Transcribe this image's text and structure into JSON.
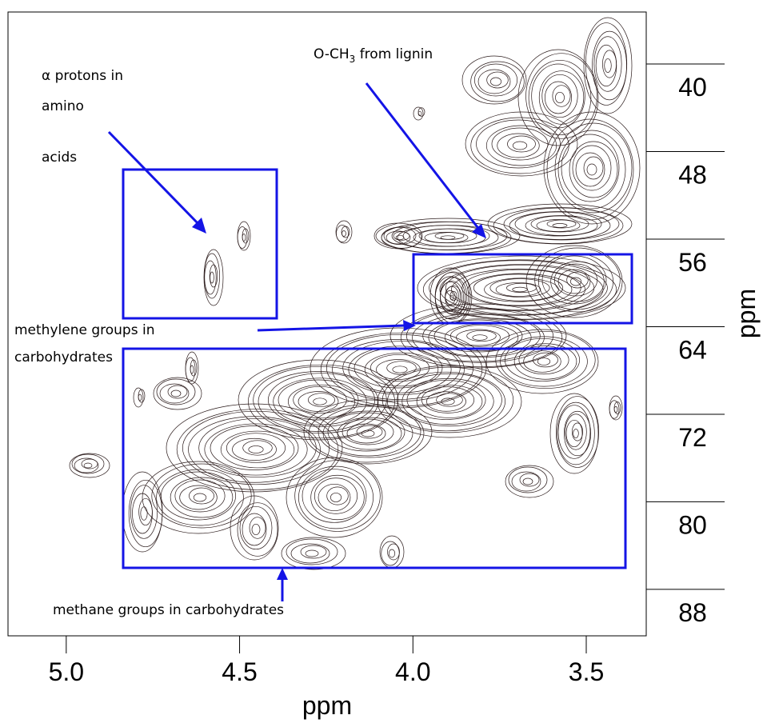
{
  "chart_data": {
    "type": "contour",
    "xlabel": "ppm",
    "ylabel": "ppm",
    "xlim": [
      5.168,
      3.327
    ],
    "ylim": [
      33.2,
      90.2
    ],
    "xticks": [
      {
        "value": 5,
        "label": "5.0"
      },
      {
        "value": 4.5,
        "label": "4.5"
      },
      {
        "value": 4,
        "label": "4.0"
      },
      {
        "value": 3.5,
        "label": "3.5"
      }
    ],
    "yticks": [
      40,
      48,
      56,
      64,
      72,
      80,
      88
    ],
    "annotations": [
      "α protons in",
      "amino",
      "acids",
      [
        "O-CH",
        "3",
        " from lignin"
      ],
      "methylene groups in",
      "carbohydrates",
      "methane groups in carbohydrates"
    ]
  }
}
